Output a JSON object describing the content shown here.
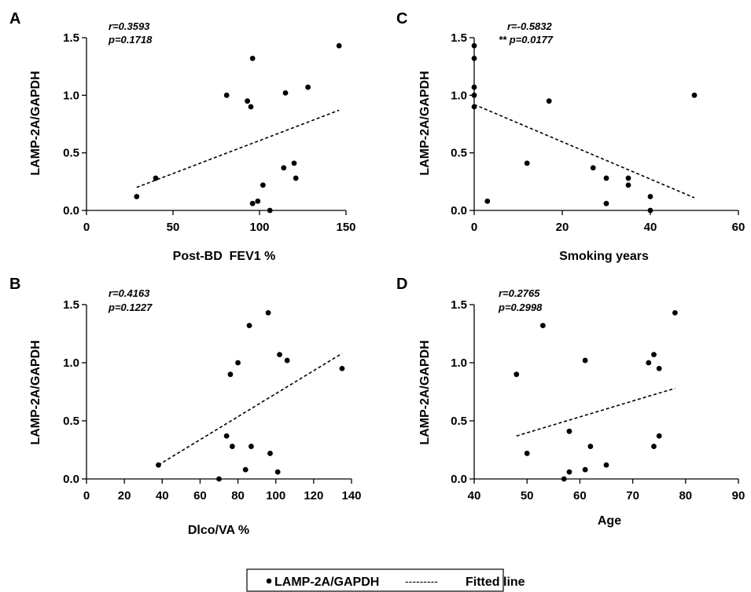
{
  "legend": {
    "marker_label": "LAMP-2A/GAPDH",
    "dash_symbol": "---------",
    "line_label": "Fitted line"
  },
  "chart_data": [
    {
      "type": "scatter",
      "panel": "A",
      "xlabel": "Post-BD  FEV1 %",
      "ylabel": "LAMP-2A/GAPDH",
      "xlim": [
        0,
        150
      ],
      "ylim": [
        0,
        1.5
      ],
      "xticks": [
        0,
        50,
        100,
        150
      ],
      "yticks": [
        "0.0",
        "0.5",
        "1.0",
        "1.5"
      ],
      "stats": [
        "r=0.3593",
        "p=0.1718"
      ],
      "series": [
        {
          "name": "LAMP-2A/GAPDH",
          "points": [
            [
              29,
              0.12
            ],
            [
              40,
              0.28
            ],
            [
              81,
              1.0
            ],
            [
              93,
              0.95
            ],
            [
              95,
              0.9
            ],
            [
              96,
              1.32
            ],
            [
              96,
              0.06
            ],
            [
              99,
              0.08
            ],
            [
              102,
              0.22
            ],
            [
              106,
              0.0
            ],
            [
              114,
              0.37
            ],
            [
              115,
              1.02
            ],
            [
              120,
              0.41
            ],
            [
              121,
              0.28
            ],
            [
              128,
              1.07
            ],
            [
              146,
              1.43
            ]
          ]
        }
      ],
      "fit": {
        "x": [
          29,
          146
        ],
        "y": [
          0.2,
          0.87
        ]
      }
    },
    {
      "type": "scatter",
      "panel": "C",
      "xlabel": "Smoking years",
      "ylabel": "LAMP-2A/GAPDH",
      "xlim": [
        0,
        60
      ],
      "ylim": [
        0,
        1.5
      ],
      "xticks": [
        0,
        20,
        40,
        60
      ],
      "yticks": [
        "0.0",
        "0.5",
        "1.0",
        "1.5"
      ],
      "stats": [
        "r=-0.5832",
        "** p=0.0177"
      ],
      "series": [
        {
          "name": "LAMP-2A/GAPDH",
          "points": [
            [
              0,
              1.43
            ],
            [
              0,
              1.32
            ],
            [
              0,
              1.07
            ],
            [
              0,
              1.0
            ],
            [
              0,
              0.9
            ],
            [
              3,
              0.08
            ],
            [
              12,
              0.41
            ],
            [
              17,
              0.95
            ],
            [
              27,
              0.37
            ],
            [
              30,
              0.28
            ],
            [
              30,
              0.06
            ],
            [
              35,
              0.28
            ],
            [
              35,
              0.22
            ],
            [
              40,
              0.12
            ],
            [
              40,
              0.0
            ],
            [
              50,
              1.0
            ]
          ]
        }
      ],
      "fit": {
        "x": [
          0,
          50
        ],
        "y": [
          0.92,
          0.11
        ]
      }
    },
    {
      "type": "scatter",
      "panel": "B",
      "xlabel": "Dlco/VA %",
      "ylabel": "LAMP-2A/GAPDH",
      "xlim": [
        0,
        140
      ],
      "ylim": [
        0,
        1.5
      ],
      "xticks": [
        0,
        20,
        40,
        60,
        80,
        100,
        120,
        140
      ],
      "yticks": [
        "0.0",
        "0.5",
        "1.0",
        "1.5"
      ],
      "stats": [
        "r=0.4163",
        "p=0.1227"
      ],
      "series": [
        {
          "name": "LAMP-2A/GAPDH",
          "points": [
            [
              38,
              0.12
            ],
            [
              70,
              0.0
            ],
            [
              74,
              0.37
            ],
            [
              76,
              0.9
            ],
            [
              77,
              0.28
            ],
            [
              80,
              1.0
            ],
            [
              84,
              0.08
            ],
            [
              86,
              1.32
            ],
            [
              87,
              0.28
            ],
            [
              96,
              1.43
            ],
            [
              97,
              0.22
            ],
            [
              101,
              0.06
            ],
            [
              102,
              1.07
            ],
            [
              106,
              1.02
            ],
            [
              135,
              0.95
            ]
          ]
        }
      ],
      "fit": {
        "x": [
          38,
          135
        ],
        "y": [
          0.12,
          1.08
        ]
      }
    },
    {
      "type": "scatter",
      "panel": "D",
      "xlabel": "Age",
      "ylabel": "LAMP-2A/GAPDH",
      "xlim": [
        40,
        90
      ],
      "ylim": [
        0,
        1.5
      ],
      "xticks": [
        40,
        50,
        60,
        70,
        80,
        90
      ],
      "yticks": [
        "0.0",
        "0.5",
        "1.0",
        "1.5"
      ],
      "stats": [
        "r=0.2765",
        "p=0.2998"
      ],
      "series": [
        {
          "name": "LAMP-2A/GAPDH",
          "points": [
            [
              48,
              0.9
            ],
            [
              50,
              0.22
            ],
            [
              53,
              1.32
            ],
            [
              57,
              0.0
            ],
            [
              58,
              0.41
            ],
            [
              58,
              0.06
            ],
            [
              61,
              1.02
            ],
            [
              61,
              0.08
            ],
            [
              62,
              0.28
            ],
            [
              65,
              0.12
            ],
            [
              73,
              1.0
            ],
            [
              74,
              1.07
            ],
            [
              74,
              0.28
            ],
            [
              75,
              0.95
            ],
            [
              75,
              0.37
            ],
            [
              78,
              1.43
            ]
          ]
        }
      ],
      "fit": {
        "x": [
          48,
          78
        ],
        "y": [
          0.37,
          0.78
        ]
      }
    }
  ]
}
